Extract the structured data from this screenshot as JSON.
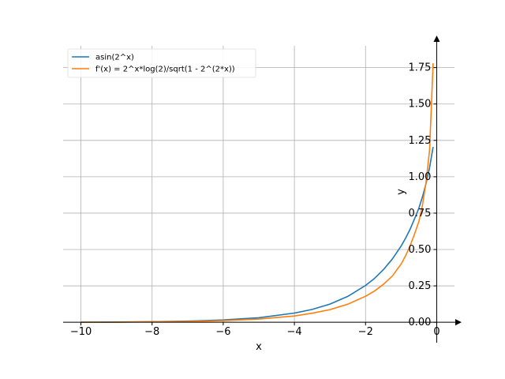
{
  "chart_data": {
    "type": "line",
    "xlabel": "x",
    "ylabel": "y",
    "xlim": [
      -10.5,
      0.5
    ],
    "ylim": [
      -0.01,
      1.9
    ],
    "x_ticks": [
      -10,
      -8,
      -6,
      -4,
      -2,
      0
    ],
    "x_tick_labels": [
      "−10",
      "−8",
      "−6",
      "−4",
      "−2",
      "0"
    ],
    "y_ticks": [
      0.0,
      0.25,
      0.5,
      0.75,
      1.0,
      1.25,
      1.5,
      1.75
    ],
    "y_tick_labels": [
      "0.00",
      "0.25",
      "0.50",
      "0.75",
      "1.00",
      "1.25",
      "1.50",
      "1.75"
    ],
    "grid": true,
    "legend_position": "top-left",
    "series": [
      {
        "name": "asin(2^x)",
        "color": "#1f77b4",
        "x": [
          -10,
          -9,
          -8,
          -7,
          -6,
          -5,
          -4,
          -3.5,
          -3,
          -2.5,
          -2,
          -1.75,
          -1.5,
          -1.25,
          -1,
          -0.875,
          -0.75,
          -0.625,
          -0.5,
          -0.4,
          -0.3,
          -0.2,
          -0.1
        ],
        "y": [
          0.001,
          0.002,
          0.004,
          0.008,
          0.016,
          0.031,
          0.063,
          0.088,
          0.125,
          0.178,
          0.253,
          0.301,
          0.361,
          0.434,
          0.524,
          0.578,
          0.638,
          0.71,
          0.785,
          0.862,
          0.953,
          1.062,
          1.205
        ]
      },
      {
        "name": "f'(x) = 2^x*log(2)/sqrt(1 - 2^(2*x))",
        "color": "#ff7f0e",
        "x": [
          -10,
          -9,
          -8,
          -7,
          -6,
          -5,
          -4,
          -3.5,
          -3,
          -2.5,
          -2,
          -1.75,
          -1.5,
          -1.25,
          -1,
          -0.875,
          -0.75,
          -0.625,
          -0.5,
          -0.4,
          -0.3,
          -0.2,
          -0.1
        ],
        "y": [
          0.001,
          0.001,
          0.003,
          0.005,
          0.011,
          0.022,
          0.043,
          0.062,
          0.087,
          0.124,
          0.179,
          0.214,
          0.26,
          0.317,
          0.4,
          0.457,
          0.524,
          0.606,
          0.693,
          0.805,
          0.96,
          1.182,
          1.78
        ]
      }
    ]
  }
}
